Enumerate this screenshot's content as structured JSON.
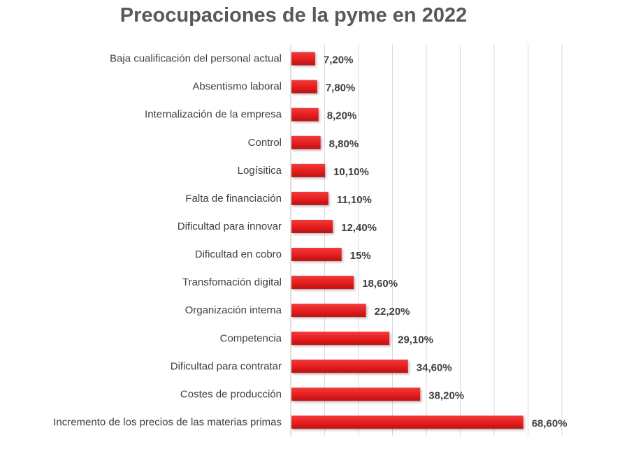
{
  "chart_data": {
    "type": "bar",
    "orientation": "horizontal",
    "title": "Preocupaciones de la pyme en 2022",
    "xlabel": "",
    "ylabel": "",
    "xlim": [
      0,
      80
    ],
    "grid": true,
    "legend": "none",
    "bar_color": "#e41e1e",
    "categories": [
      "Baja cualificación del personal actual",
      "Absentismo laboral",
      "Internalización de la empresa",
      "Control",
      "Logísitica",
      "Falta de financiación",
      "Dificultad para innovar",
      "Dificultad en cobro",
      "Transfomación digital",
      "Organización interna",
      "Competencia",
      "Dificultad para contratar",
      "Costes de producción",
      "Incremento de los precios de las materias primas"
    ],
    "values": [
      7.2,
      7.8,
      8.2,
      8.8,
      10.1,
      11.1,
      12.4,
      15,
      18.6,
      22.2,
      29.1,
      34.6,
      38.2,
      68.6
    ],
    "data_labels": [
      "7,20%",
      "7,80%",
      "8,20%",
      "8,80%",
      "10,10%",
      "11,10%",
      "12,40%",
      "15%",
      "18,60%",
      "22,20%",
      "29,10%",
      "34,60%",
      "38,20%",
      "68,60%"
    ]
  }
}
